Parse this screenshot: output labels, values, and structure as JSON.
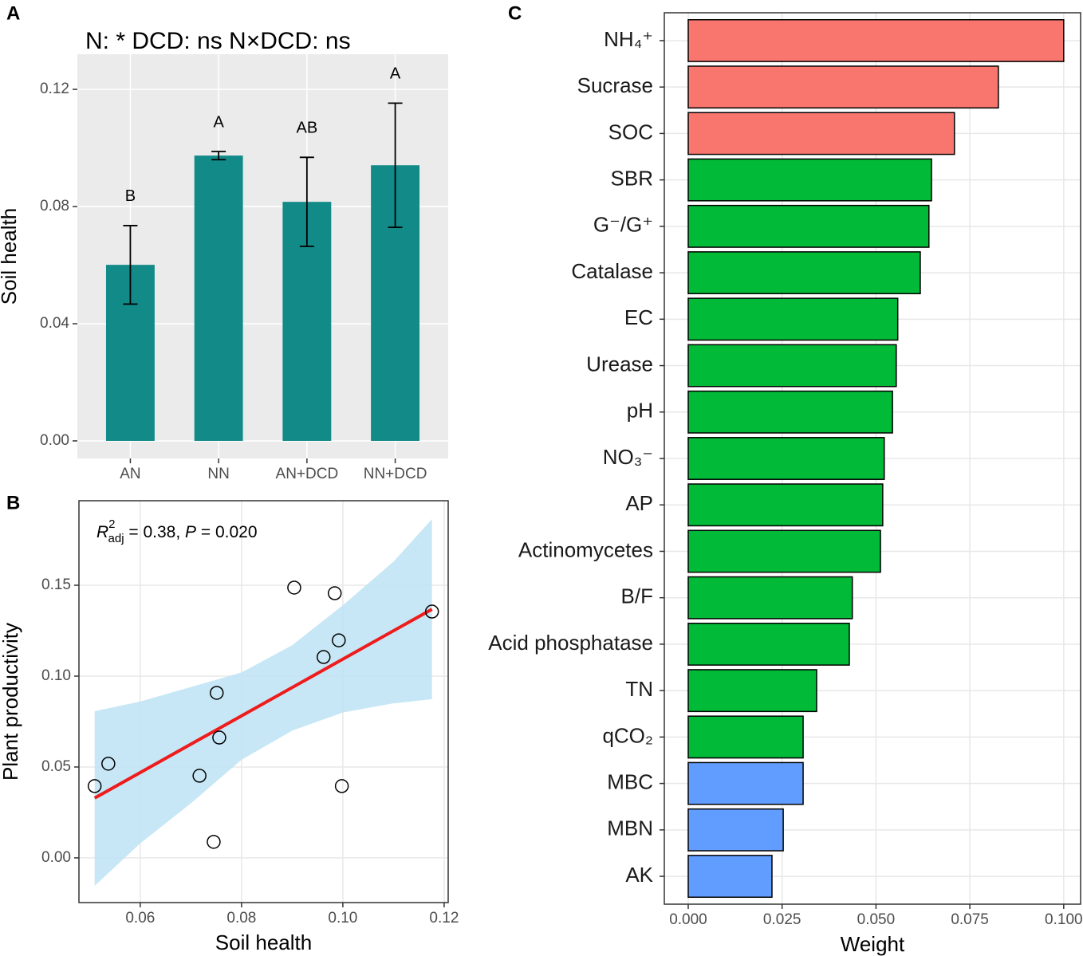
{
  "chart_data": [
    {
      "type": "bar",
      "panel": "A",
      "subtitle": "N:  *  DCD:  ns  N×DCD:  ns",
      "y_label": "Soil health",
      "categories": [
        "AN",
        "NN",
        "AN+DCD",
        "NN+DCD"
      ],
      "values": [
        0.0601,
        0.0974,
        0.0816,
        0.0941
      ],
      "errors": [
        0.0134,
        0.0014,
        0.0152,
        0.0212
      ],
      "labels": [
        "B",
        "A",
        "AB",
        "A"
      ],
      "color": "#118a88",
      "ylim": [
        -0.006,
        0.132
      ],
      "yticks": [
        {
          "value": 0,
          "label": "0.00"
        },
        0.04,
        0.08,
        0.12
      ],
      "theme": "grey",
      "grid": true
    },
    {
      "type": "scatter",
      "panel": "B",
      "x_label": "Soil health",
      "y_label": "Plant productivity",
      "annotation": [
        "R",
        "2",
        "adj",
        " = 0.38, ",
        "P",
        " = 0.020"
      ],
      "x": [
        0.051,
        0.0537,
        0.0717,
        0.0745,
        0.0751,
        0.0756,
        0.0904,
        0.0962,
        0.0984,
        0.0992,
        0.0998,
        0.1176
      ],
      "values": [
        0.0395,
        0.0518,
        0.0452,
        0.0088,
        0.0908,
        0.0662,
        0.1487,
        0.1105,
        0.1456,
        0.1197,
        0.0395,
        0.1355
      ],
      "fit": {
        "x": [
          0.051,
          0.1176
        ],
        "values": [
          0.0329,
          0.1368
        ],
        "color": "#ee1c1c"
      },
      "band": {
        "x": [
          0.051,
          0.06,
          0.07,
          0.08,
          0.09,
          0.1,
          0.11,
          0.1176
        ],
        "upper": [
          0.0807,
          0.086,
          0.094,
          0.102,
          0.117,
          0.139,
          0.163,
          0.1864
        ],
        "lower": [
          -0.0154,
          0.008,
          0.03,
          0.054,
          0.07,
          0.08,
          0.085,
          0.0873
        ],
        "color": "#bde3f4"
      },
      "xlim": [
        0.0479,
        0.1208
      ],
      "xticks": [
        0.06,
        0.08,
        {
          "value": 0.1,
          "label": "0.10"
        },
        0.12
      ],
      "ylim": [
        -0.0246,
        0.1965
      ],
      "yticks": [
        {
          "value": 0,
          "label": "0.00"
        },
        0.05,
        {
          "value": 0.1,
          "label": "0.10"
        },
        0.15
      ],
      "theme": "bw",
      "grid": true
    },
    {
      "type": "bar",
      "horizontal": true,
      "panel": "C",
      "x_label": "Weight",
      "categories": [
        "NH₄⁺",
        "Sucrase",
        "SOC",
        "SBR",
        "G⁻/G⁺",
        "Catalase",
        "EC",
        "Urease",
        "pH",
        "NO₃⁻",
        "AP",
        "Actinomycetes",
        "B/F",
        "Acid phosphatase",
        "TN",
        "qCO₂",
        "MBC",
        "MBN",
        "AK"
      ],
      "values": [
        0.1,
        0.0826,
        0.0709,
        0.0648,
        0.0641,
        0.0618,
        0.0558,
        0.0554,
        0.0544,
        0.0522,
        0.0518,
        0.0512,
        0.0437,
        0.0429,
        0.0342,
        0.0306,
        0.0306,
        0.0253,
        0.0223
      ],
      "colors": [
        "#f8766d",
        "#f8766d",
        "#f8766d",
        "#00ba38",
        "#00ba38",
        "#00ba38",
        "#00ba38",
        "#00ba38",
        "#00ba38",
        "#00ba38",
        "#00ba38",
        "#00ba38",
        "#00ba38",
        "#00ba38",
        "#00ba38",
        "#00ba38",
        "#619cff",
        "#619cff",
        "#619cff"
      ],
      "xlim": [
        -0.00637,
        0.1045
      ],
      "xticks": [
        {
          "value": 0,
          "label": "0.000"
        },
        0.025,
        {
          "value": 0.05,
          "label": "0.050"
        },
        {
          "value": 0.075,
          "label": "0.075"
        },
        {
          "value": 0.1,
          "label": "0.100"
        }
      ],
      "theme": "bw",
      "grid": true
    }
  ]
}
